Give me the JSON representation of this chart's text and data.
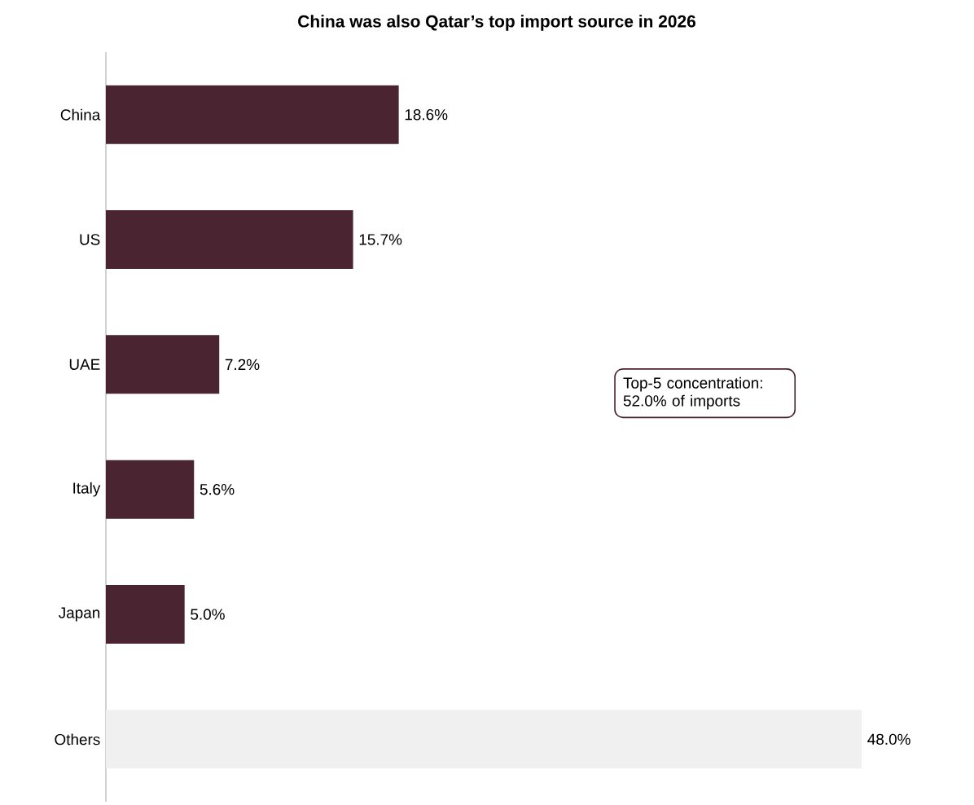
{
  "chart_data": {
    "type": "bar",
    "orientation": "horizontal",
    "title": "China was also Qatar’s top import source in 2026",
    "categories": [
      "China",
      "US",
      "UAE",
      "Italy",
      "Japan",
      "Others"
    ],
    "values": [
      18.6,
      15.7,
      7.2,
      5.6,
      5.0,
      48.0
    ],
    "value_labels": [
      "18.6%",
      "15.7%",
      "7.2%",
      "5.6%",
      "5.0%",
      "48.0%"
    ],
    "colors": [
      "#4a2431",
      "#4a2431",
      "#4a2431",
      "#4a2431",
      "#4a2431",
      "#f0f0f0"
    ],
    "annotations": [
      "Top-5 concentration: 52.0% of imports"
    ]
  }
}
